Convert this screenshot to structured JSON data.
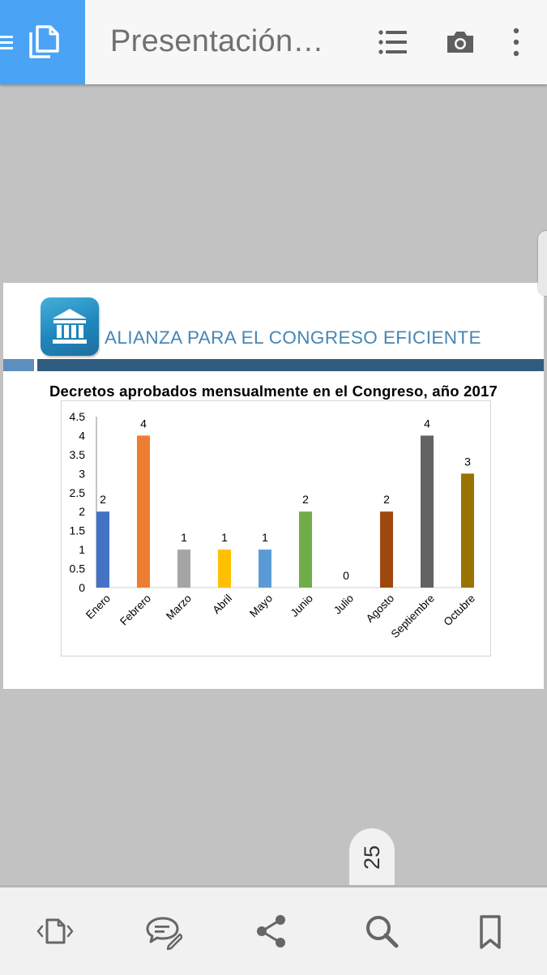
{
  "app": {
    "title": "Presentación…"
  },
  "toolbar": {
    "icons": [
      "menu-icon",
      "document-icon",
      "outline-list-icon",
      "camera-icon",
      "more-vert-icon"
    ]
  },
  "slide": {
    "heading": "ALIANZA PARA EL CONGRESO EFICIENTE",
    "logo_icon": "bank-building-icon",
    "colors": {
      "heading": "#4586b6",
      "band_dark": "#305d7f",
      "band_light": "#5b8fbd"
    }
  },
  "chart_data": {
    "type": "bar",
    "title": "Decretos aprobados mensualmente en el Congreso, año 2017",
    "categories": [
      "Enero",
      "Febrero",
      "Marzo",
      "Abril",
      "Mayo",
      "Junio",
      "Julio",
      "Agosto",
      "Septiembre",
      "Octubre"
    ],
    "values": [
      2,
      4,
      1,
      1,
      1,
      2,
      0,
      2,
      4,
      3
    ],
    "data_labels": [
      "2",
      "4",
      "1",
      "1",
      "1",
      "2",
      "0",
      "2",
      "4",
      "3"
    ],
    "colors": [
      "#4472c4",
      "#ed7d31",
      "#a5a5a5",
      "#ffc000",
      "#5b9bd5",
      "#70ad47",
      "#264478",
      "#9e480e",
      "#636363",
      "#997300"
    ],
    "ylim": [
      0,
      4.5
    ],
    "yticks": [
      "0",
      "0.5",
      "1",
      "1.5",
      "2",
      "2.5",
      "3",
      "3.5",
      "4",
      "4.5"
    ],
    "xlabel": "",
    "ylabel": "",
    "grid": false,
    "legend": "none"
  },
  "page_indicator": {
    "number": "25"
  },
  "bottom_bar": {
    "icons": [
      "page-navigate-icon",
      "comment-edit-icon",
      "share-icon",
      "search-icon",
      "bookmark-icon"
    ]
  }
}
